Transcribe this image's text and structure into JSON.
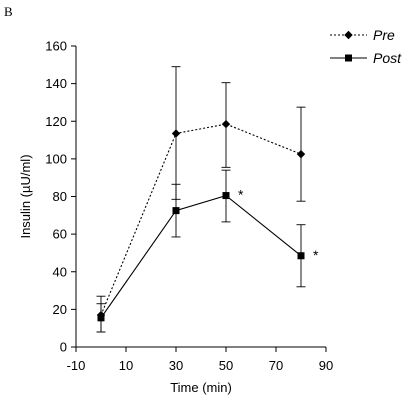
{
  "panel_label": "B",
  "chart_data": {
    "type": "line",
    "title": "",
    "xlabel": "Time (min)",
    "ylabel": "Insulin (µU/ml)",
    "xlim": [
      -10,
      90
    ],
    "ylim": [
      0,
      160
    ],
    "xticks": [
      -10,
      10,
      30,
      50,
      70,
      90
    ],
    "yticks": [
      0,
      20,
      40,
      60,
      80,
      100,
      120,
      140,
      160
    ],
    "grid": false,
    "legend_position": "top-right",
    "series": [
      {
        "name": "Pre",
        "line_style": "dotted",
        "marker": "diamond",
        "color": "#000000",
        "x": [
          0,
          30,
          50,
          80
        ],
        "y": [
          17,
          113.5,
          118.5,
          102.5
        ],
        "err_lower": [
          9,
          35,
          23,
          25
        ],
        "err_upper": [
          10,
          35.5,
          22,
          25
        ]
      },
      {
        "name": "Post",
        "line_style": "solid",
        "marker": "square",
        "color": "#000000",
        "x": [
          0,
          30,
          50,
          80
        ],
        "y": [
          15.5,
          72.5,
          80.5,
          48.5
        ],
        "err_lower": [
          7.5,
          14,
          14,
          16.5
        ],
        "err_upper": [
          7.5,
          14,
          13.5,
          16.5
        ]
      }
    ],
    "annotations": [
      {
        "text": "*",
        "x": 50,
        "y": 80.5
      },
      {
        "text": "*",
        "x": 80,
        "y": 48.5
      }
    ]
  }
}
